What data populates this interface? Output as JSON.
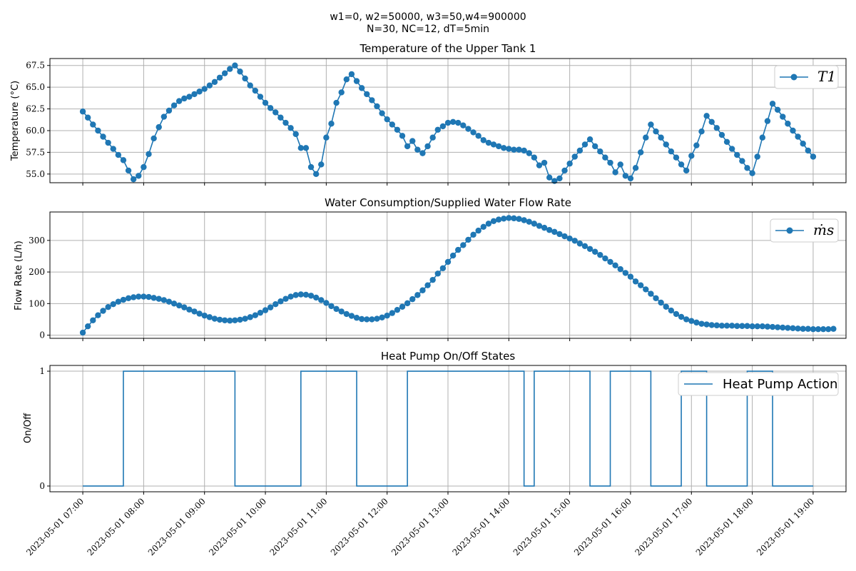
{
  "figure": {
    "suptitle_line1": "w1=0, w2=50000, w3=50,w4=900000",
    "suptitle_line2": "N=30, NC=12, dT=5min"
  },
  "colors": {
    "series": "#1f77b4",
    "grid": "#b0b0b0"
  },
  "x_axis": {
    "start": "2023-05-01 07:00",
    "end": "2023-05-01 19:00",
    "tick_labels": [
      "2023-05-01 07:00",
      "2023-05-01 08:00",
      "2023-05-01 09:00",
      "2023-05-01 10:00",
      "2023-05-01 11:00",
      "2023-05-01 12:00",
      "2023-05-01 13:00",
      "2023-05-01 14:00",
      "2023-05-01 15:00",
      "2023-05-01 16:00",
      "2023-05-01 17:00",
      "2023-05-01 18:00",
      "2023-05-01 19:00"
    ]
  },
  "chart_data": [
    {
      "type": "line",
      "title": "Temperature of the Upper Tank 1",
      "ylabel": "Temperature (°C)",
      "ylim": [
        54,
        68.3
      ],
      "yticks": [
        "55.0",
        "57.5",
        "60.0",
        "62.5",
        "65.0",
        "67.5"
      ],
      "legend": "top-right",
      "markers": true,
      "series": [
        {
          "name": "T1",
          "x_start": "07:00",
          "x_step": "5min",
          "values": [
            62.2,
            61.5,
            60.7,
            60.0,
            59.3,
            58.6,
            57.9,
            57.2,
            56.6,
            55.4,
            54.4,
            54.8,
            55.8,
            57.3,
            59.1,
            60.4,
            61.6,
            62.3,
            62.9,
            63.4,
            63.7,
            63.9,
            64.2,
            64.5,
            64.8,
            65.2,
            65.6,
            66.1,
            66.6,
            67.1,
            67.5,
            66.8,
            66.0,
            65.2,
            64.6,
            63.9,
            63.2,
            62.6,
            62.1,
            61.5,
            60.9,
            60.3,
            59.6,
            58.0,
            58.0,
            55.8,
            55.0,
            56.1,
            59.2,
            60.8,
            63.2,
            64.4,
            65.9,
            66.5,
            65.7,
            64.9,
            64.2,
            63.5,
            62.8,
            62.0,
            61.3,
            60.7,
            60.1,
            59.4,
            58.2,
            58.8,
            57.8,
            57.4,
            58.2,
            59.2,
            60.1,
            60.5,
            60.9,
            61.0,
            60.9,
            60.6,
            60.2,
            59.8,
            59.4,
            58.9,
            58.6,
            58.4,
            58.2,
            58.0,
            57.9,
            57.8,
            57.8,
            57.7,
            57.4,
            56.9,
            56.0,
            56.3,
            54.6,
            54.2,
            54.5,
            55.4,
            56.2,
            57.0,
            57.7,
            58.4,
            59.0,
            58.2,
            57.6,
            56.9,
            56.3,
            55.2,
            56.1,
            54.8,
            54.5,
            55.7,
            57.5,
            59.2,
            60.7,
            59.9,
            59.2,
            58.4,
            57.6,
            56.9,
            56.1,
            55.4,
            57.1,
            58.3,
            59.9,
            61.7,
            61.0,
            60.3,
            59.5,
            58.7,
            57.9,
            57.2,
            56.5,
            55.7,
            55.1,
            57.0,
            59.2,
            61.1,
            63.1,
            62.4,
            61.6,
            60.8,
            60.0,
            59.3,
            58.5,
            57.7,
            57.0
          ]
        }
      ]
    },
    {
      "type": "line",
      "title": "Water Consumption/Supplied Water Flow Rate",
      "ylabel": "Flow Rate (L/h)",
      "ylim": [
        -10,
        390
      ],
      "yticks": [
        "0",
        "100",
        "200",
        "300"
      ],
      "legend": "top-right",
      "markers": true,
      "series": [
        {
          "name": "ṁs",
          "x_start": "07:00",
          "x_step": "5min",
          "values": [
            8,
            28,
            47,
            63,
            77,
            89,
            98,
            106,
            112,
            117,
            120,
            122,
            122,
            121,
            118,
            115,
            111,
            106,
            100,
            94,
            88,
            81,
            75,
            68,
            62,
            57,
            52,
            49,
            47,
            46,
            47,
            49,
            52,
            57,
            63,
            71,
            79,
            88,
            98,
            107,
            115,
            122,
            127,
            129,
            128,
            125,
            119,
            111,
            102,
            92,
            83,
            75,
            67,
            61,
            55,
            51,
            50,
            50,
            52,
            56,
            62,
            70,
            80,
            90,
            101,
            114,
            127,
            142,
            158,
            175,
            195,
            212,
            232,
            252,
            270,
            285,
            302,
            318,
            331,
            343,
            353,
            361,
            366,
            369,
            371,
            370,
            368,
            364,
            359,
            353,
            346,
            340,
            333,
            327,
            320,
            313,
            306,
            299,
            290,
            282,
            273,
            264,
            254,
            243,
            232,
            221,
            209,
            197,
            185,
            170,
            158,
            145,
            131,
            117,
            103,
            90,
            78,
            67,
            58,
            50,
            45,
            40,
            36,
            34,
            32,
            31,
            30,
            30,
            30,
            29,
            29,
            29,
            28,
            28,
            28,
            27,
            26,
            25,
            24,
            23,
            22,
            21,
            20,
            20,
            19,
            19,
            19,
            19,
            20
          ]
        }
      ]
    },
    {
      "type": "line",
      "title": "Heat Pump On/Off States",
      "ylabel": "On/Off",
      "ylim": [
        -0.05,
        1.05
      ],
      "yticks": [
        "0",
        "1"
      ],
      "legend": "top-right",
      "step": true,
      "series": [
        {
          "name": "Heat Pump Action",
          "transitions": [
            [
              "07:00",
              0
            ],
            [
              "07:40",
              1
            ],
            [
              "09:30",
              0
            ],
            [
              "10:35",
              1
            ],
            [
              "11:30",
              0
            ],
            [
              "12:20",
              1
            ],
            [
              "14:15",
              0
            ],
            [
              "14:25",
              1
            ],
            [
              "15:20",
              0
            ],
            [
              "15:40",
              1
            ],
            [
              "16:20",
              0
            ],
            [
              "16:50",
              1
            ],
            [
              "17:15",
              0
            ],
            [
              "17:55",
              1
            ],
            [
              "18:20",
              0
            ],
            [
              "19:00",
              0
            ]
          ]
        }
      ]
    }
  ]
}
